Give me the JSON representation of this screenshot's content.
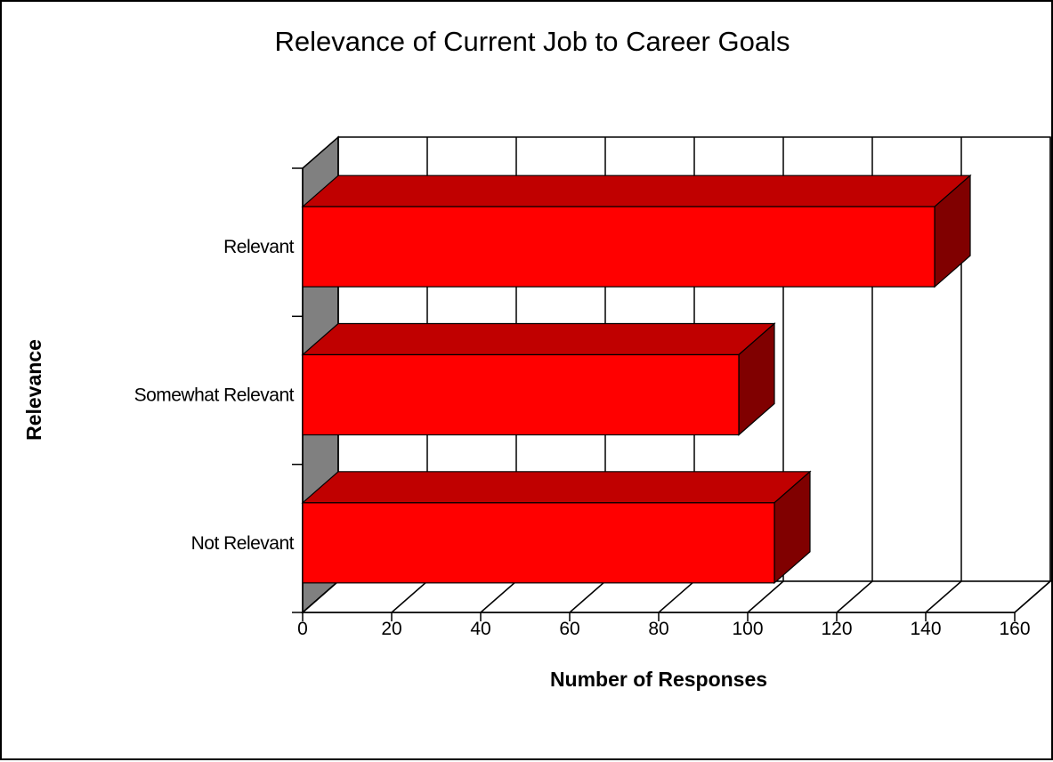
{
  "chart_data": {
    "type": "bar",
    "orientation": "horizontal",
    "three_d": true,
    "title": "Relevance of Current Job to Career Goals",
    "xlabel": "Number of Responses",
    "ylabel": "Relevance",
    "categories": [
      "Relevant",
      "Somewhat Relevant",
      "Not Relevant"
    ],
    "values": [
      142,
      98,
      106
    ],
    "xlim": [
      0,
      160
    ],
    "x_ticks": [
      "0",
      "20",
      "40",
      "60",
      "80",
      "100",
      "120",
      "140",
      "160"
    ],
    "grid": true,
    "legend": "none"
  },
  "colors": {
    "bar_front": "#ff0000",
    "bar_top": "#c00000",
    "bar_side": "#800000",
    "wall": "#808080",
    "gridline": "#000000"
  }
}
